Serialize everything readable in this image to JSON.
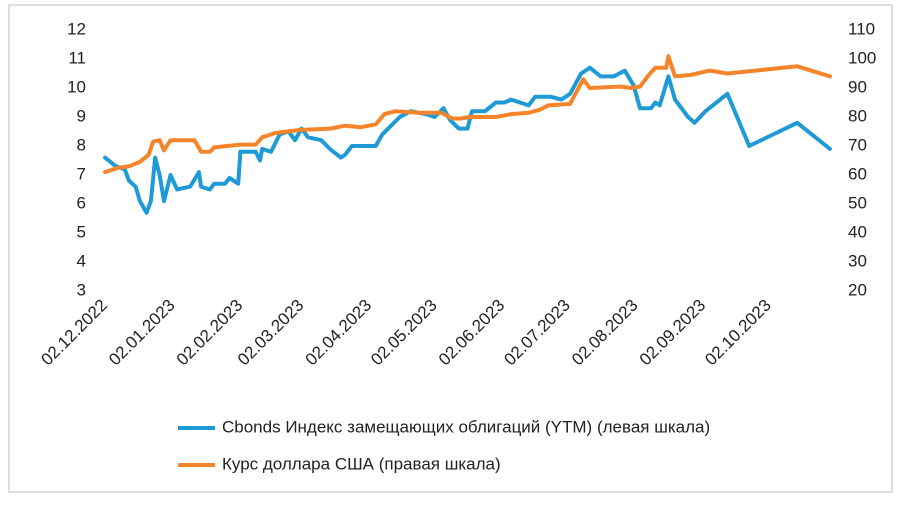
{
  "chart_data": {
    "type": "line",
    "xlim": [
      "02.12.2022",
      "30.10.2023"
    ],
    "xticks": [
      "02.12.2022",
      "02.01.2023",
      "02.02.2023",
      "02.03.2023",
      "02.04.2023",
      "02.05.2023",
      "02.06.2023",
      "02.07.2023",
      "02.08.2023",
      "02.09.2023",
      "02.10.2023"
    ],
    "ylim": [
      3,
      12
    ],
    "yticks": [
      3,
      4,
      5,
      6,
      7,
      8,
      9,
      10,
      11,
      12
    ],
    "y2lim": [
      20,
      110
    ],
    "y2ticks": [
      20,
      30,
      40,
      50,
      60,
      70,
      80,
      90,
      100,
      110
    ],
    "grid": false,
    "series": [
      {
        "name": "Cbonds Индекс замещающих облигаций (YTM) (левая шкала)",
        "color": "#1e9ad6",
        "x": [
          "02.12.2022",
          "07.12.2022",
          "11.12.2022",
          "13.12.2022",
          "16.12.2022",
          "18.12.2022",
          "21.12.2022",
          "23.12.2022",
          "25.12.2022",
          "27.12.2022",
          "29.12.2022",
          "01.01.2023",
          "04.01.2023",
          "10.01.2023",
          "14.01.2023",
          "15.01.2023",
          "19.01.2023",
          "21.01.2023",
          "26.01.2023",
          "28.01.2023",
          "01.02.2023",
          "02.02.2023",
          "09.02.2023",
          "11.02.2023",
          "12.02.2023",
          "16.02.2023",
          "20.02.2023",
          "24.02.2023",
          "27.02.2023",
          "02.03.2023",
          "05.03.2023",
          "11.03.2023",
          "15.03.2023",
          "20.03.2023",
          "22.03.2023",
          "25.03.2023",
          "31.03.2023",
          "05.04.2023",
          "08.04.2023",
          "12.04.2023",
          "16.04.2023",
          "21.04.2023",
          "28.04.2023",
          "02.05.2023",
          "06.05.2023",
          "09.05.2023",
          "13.05.2023",
          "17.05.2023",
          "19.05.2023",
          "25.05.2023",
          "30.05.2023",
          "03.06.2023",
          "06.06.2023",
          "10.06.2023",
          "14.06.2023",
          "17.06.2023",
          "24.06.2023",
          "29.06.2023",
          "03.07.2023",
          "08.07.2023",
          "12.07.2023",
          "17.07.2023",
          "23.07.2023",
          "28.07.2023",
          "01.08.2023",
          "04.08.2023",
          "09.08.2023",
          "11.08.2023",
          "13.08.2023",
          "17.08.2023",
          "20.08.2023",
          "26.08.2023",
          "29.08.2023",
          "03.09.2023",
          "13.09.2023",
          "23.09.2023",
          "15.10.2023",
          "30.10.2023"
        ],
        "values": [
          7.6,
          7.3,
          7.2,
          6.8,
          6.6,
          6.1,
          5.7,
          6.1,
          7.6,
          7.0,
          6.1,
          7.0,
          6.5,
          6.6,
          7.1,
          6.6,
          6.5,
          6.7,
          6.7,
          6.9,
          6.7,
          7.8,
          7.8,
          7.5,
          7.9,
          7.8,
          8.4,
          8.5,
          8.2,
          8.6,
          8.3,
          8.2,
          7.9,
          7.6,
          7.7,
          8.0,
          8.0,
          8.0,
          8.4,
          8.7,
          9.0,
          9.2,
          9.1,
          9.0,
          9.3,
          8.9,
          8.6,
          8.6,
          9.2,
          9.2,
          9.5,
          9.5,
          9.6,
          9.5,
          9.4,
          9.7,
          9.7,
          9.6,
          9.8,
          10.5,
          10.7,
          10.4,
          10.4,
          10.6,
          10.1,
          9.3,
          9.3,
          9.5,
          9.4,
          10.4,
          9.6,
          9.0,
          8.8,
          9.2,
          9.8,
          8.0,
          8.8,
          7.9
        ]
      },
      {
        "name": "Курс доллара США (правая шкала)",
        "color": "#f6842a",
        "axis": "y2",
        "x": [
          "02.12.2022",
          "08.12.2022",
          "13.12.2022",
          "18.12.2022",
          "22.12.2022",
          "24.12.2022",
          "27.12.2022",
          "29.12.2022",
          "01.01.2023",
          "12.01.2023",
          "15.01.2023",
          "19.01.2023",
          "21.01.2023",
          "02.02.2023",
          "09.02.2023",
          "12.02.2023",
          "18.02.2023",
          "01.03.2023",
          "15.03.2023",
          "22.03.2023",
          "29.03.2023",
          "05.04.2023",
          "09.04.2023",
          "14.04.2023",
          "25.04.2023",
          "05.05.2023",
          "10.05.2023",
          "14.05.2023",
          "18.05.2023",
          "30.05.2023",
          "06.06.2023",
          "14.06.2023",
          "19.06.2023",
          "23.06.2023",
          "03.07.2023",
          "09.07.2023",
          "12.07.2023",
          "26.07.2023",
          "31.07.2023",
          "04.08.2023",
          "08.08.2023",
          "11.08.2023",
          "16.08.2023",
          "17.08.2023",
          "20.08.2023",
          "27.08.2023",
          "05.09.2023",
          "13.09.2023",
          "15.10.2023",
          "30.10.2023"
        ],
        "values": [
          61,
          62.5,
          63,
          64.5,
          67,
          71.5,
          72,
          68.5,
          72,
          72,
          68,
          68,
          69.5,
          70.5,
          70.5,
          73,
          74.5,
          75.5,
          76,
          77,
          76.5,
          77.5,
          81,
          82,
          81.5,
          81.5,
          79.5,
          79.5,
          80,
          80,
          81,
          81.5,
          82.5,
          84,
          84.5,
          93,
          90,
          90.5,
          90,
          90.5,
          94.5,
          97,
          97,
          101,
          94,
          94.5,
          96,
          95,
          97.5,
          94
        ]
      }
    ]
  }
}
